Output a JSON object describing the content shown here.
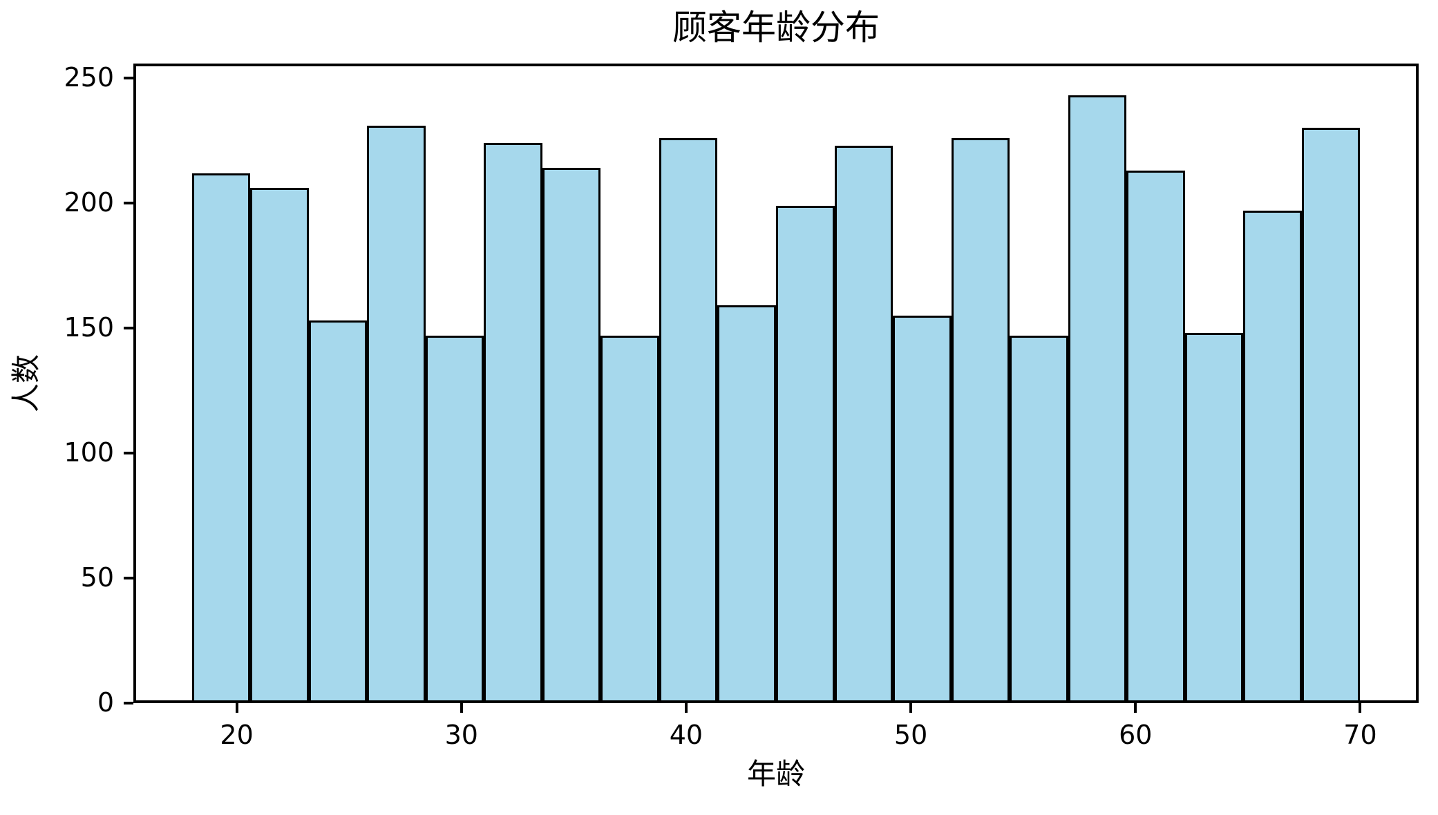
{
  "figure": {
    "title": "顾客年龄分布",
    "xlabel": "年龄",
    "ylabel": "人数"
  },
  "chart_data": {
    "type": "bar",
    "subtype": "histogram",
    "title": "顾客年龄分布",
    "xlabel": "年龄",
    "ylabel": "人数",
    "bin_edges": [
      18.0,
      20.6,
      23.2,
      25.8,
      28.4,
      31.0,
      33.6,
      36.2,
      38.8,
      41.4,
      44.0,
      46.6,
      49.2,
      51.8,
      54.4,
      57.0,
      59.6,
      62.2,
      64.8,
      67.4,
      70.0
    ],
    "values": [
      212,
      206,
      153,
      231,
      147,
      224,
      214,
      147,
      226,
      159,
      199,
      223,
      155,
      226,
      147,
      243,
      213,
      148,
      197,
      230
    ],
    "xticks": [
      20,
      30,
      40,
      50,
      60,
      70
    ],
    "yticks": [
      0,
      50,
      100,
      150,
      200,
      250
    ],
    "xlim": [
      15.4,
      72.6
    ],
    "ylim": [
      0,
      255.8
    ],
    "grid": false,
    "legend": null,
    "colors": {
      "bar_fill": "#A6D8EC",
      "bar_edge": "#000000",
      "axis": "#000000",
      "background": "#FFFFFF"
    }
  }
}
